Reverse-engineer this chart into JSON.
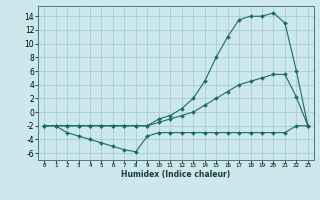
{
  "xlabel": "Humidex (Indice chaleur)",
  "background_color": "#cce8ec",
  "grid_color": "#aaccd4",
  "line_color": "#1a6b6b",
  "xlim": [
    -0.5,
    23.5
  ],
  "ylim": [
    -7,
    15.5
  ],
  "xticks": [
    0,
    1,
    2,
    3,
    4,
    5,
    6,
    7,
    8,
    9,
    10,
    11,
    12,
    13,
    14,
    15,
    16,
    17,
    18,
    19,
    20,
    21,
    22,
    23
  ],
  "yticks": [
    -6,
    -4,
    -2,
    0,
    2,
    4,
    6,
    8,
    10,
    12,
    14
  ],
  "series": [
    {
      "x": [
        0,
        1,
        2,
        3,
        4,
        5,
        6,
        7,
        8,
        9,
        10,
        11,
        12,
        13,
        14,
        15,
        16,
        17,
        18,
        19,
        20,
        21,
        22,
        23
      ],
      "y": [
        -2,
        -2,
        -3,
        -3.5,
        -4.0,
        -4.5,
        -5,
        -5.5,
        -5.8,
        -3.5,
        -3,
        -3,
        -3,
        -3,
        -3,
        -3,
        -3,
        -3,
        -3,
        -3,
        -3,
        -3,
        -2,
        -2
      ]
    },
    {
      "x": [
        0,
        1,
        2,
        3,
        4,
        5,
        6,
        7,
        8,
        9,
        10,
        11,
        12,
        13,
        14,
        15,
        16,
        17,
        18,
        19,
        20,
        21,
        22,
        23
      ],
      "y": [
        -2,
        -2,
        -2,
        -2,
        -2,
        -2,
        -2,
        -2,
        -2,
        -2,
        -1.5,
        -1.0,
        -0.5,
        0,
        1,
        2,
        3,
        4,
        4.5,
        5,
        5.5,
        5.5,
        2.2,
        -2
      ]
    },
    {
      "x": [
        0,
        1,
        2,
        3,
        4,
        5,
        6,
        7,
        8,
        9,
        10,
        11,
        12,
        13,
        14,
        15,
        16,
        17,
        18,
        19,
        20,
        21,
        22,
        23
      ],
      "y": [
        -2,
        -2,
        -2,
        -2,
        -2,
        -2,
        -2,
        -2,
        -2,
        -2,
        -1,
        -0.5,
        0.5,
        2,
        4.5,
        8,
        11,
        13.5,
        14,
        14,
        14.5,
        13,
        6,
        -2
      ]
    }
  ]
}
